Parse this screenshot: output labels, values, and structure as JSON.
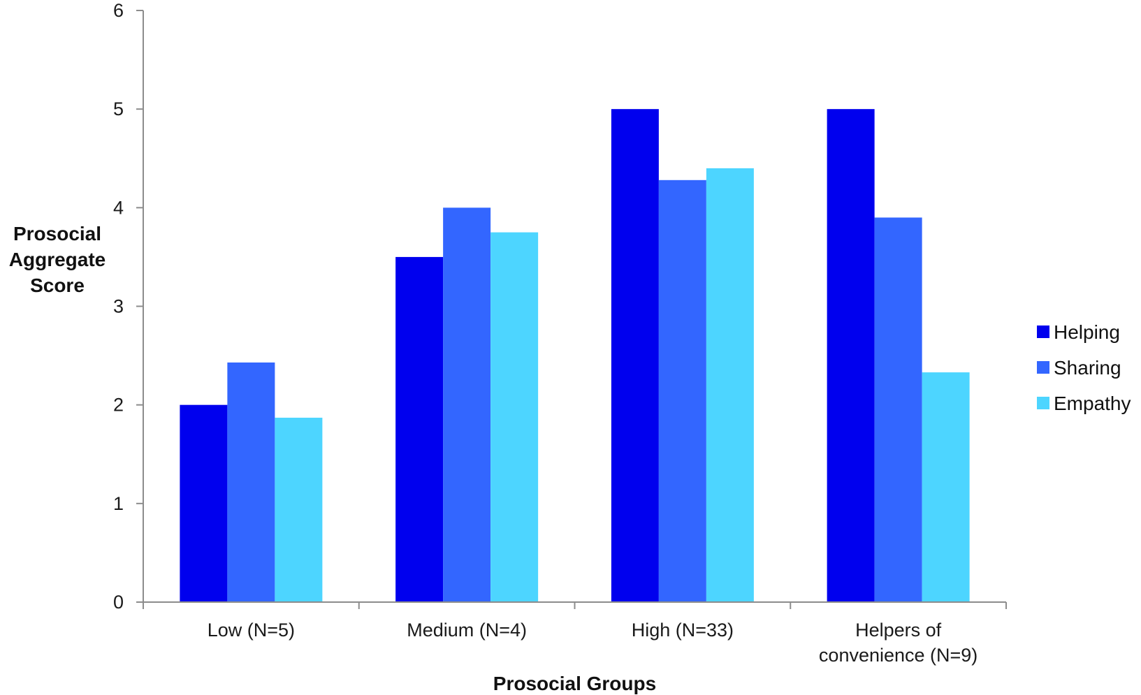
{
  "chart_data": {
    "type": "bar",
    "title": "",
    "xlabel": "Prosocial Groups",
    "ylabel_lines": [
      "Prosocial",
      "Aggregate",
      "Score"
    ],
    "ylim": [
      0,
      6
    ],
    "yticks": [
      0,
      1,
      2,
      3,
      4,
      5,
      6
    ],
    "grid": false,
    "legend_position": "right",
    "categories": [
      [
        "Low (N=5)"
      ],
      [
        "Medium (N=4)"
      ],
      [
        "High (N=33)"
      ],
      [
        "Helpers of",
        "convenience (N=9)"
      ]
    ],
    "series": [
      {
        "name": "Helping",
        "color": "#0000ee",
        "values": [
          2.0,
          3.5,
          5.0,
          5.0
        ]
      },
      {
        "name": "Sharing",
        "color": "#3366ff",
        "values": [
          2.43,
          4.0,
          4.28,
          3.9
        ]
      },
      {
        "name": "Empathy",
        "color": "#4dd5ff",
        "values": [
          1.87,
          3.75,
          4.4,
          2.33
        ]
      }
    ]
  }
}
